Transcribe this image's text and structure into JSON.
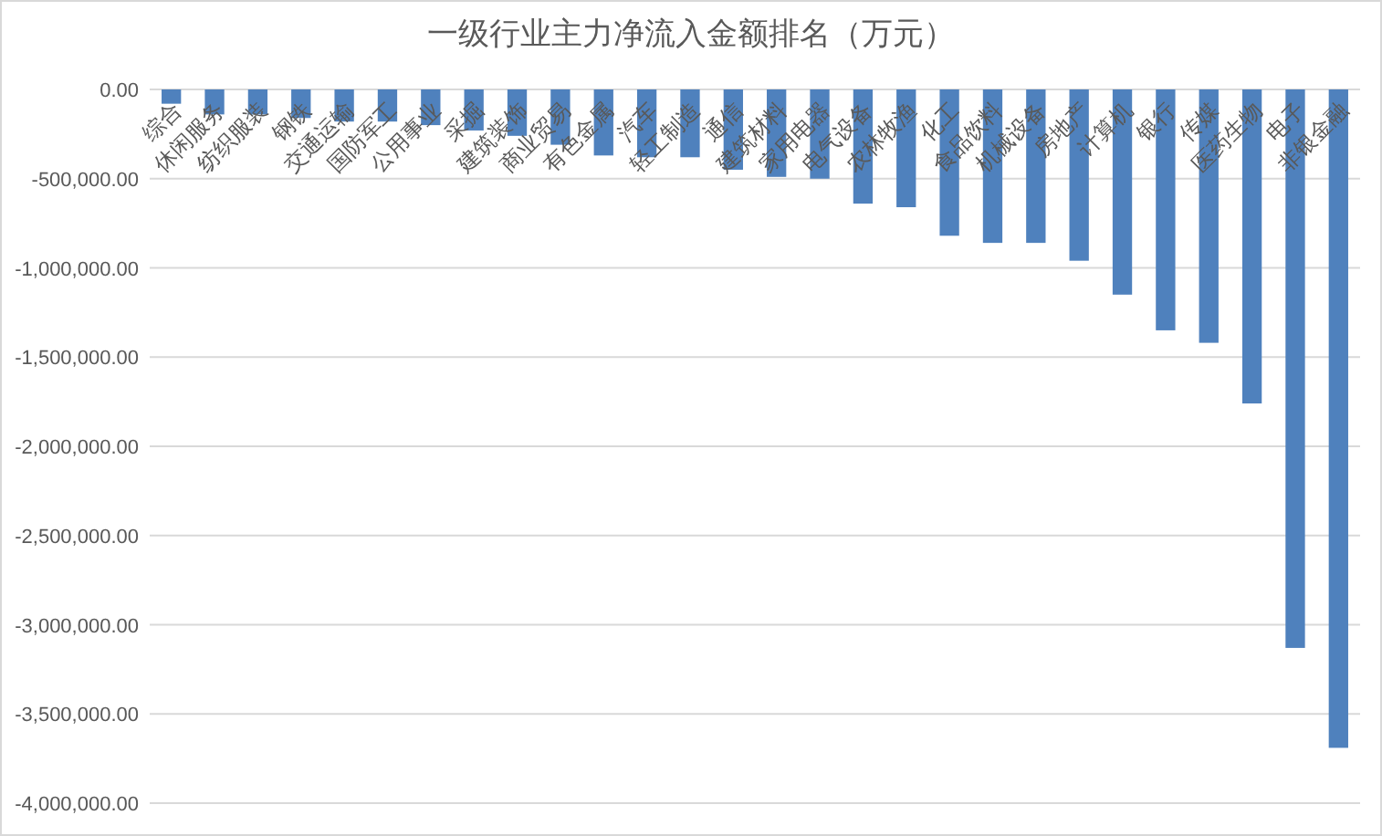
{
  "chart_data": {
    "type": "bar",
    "title": "一级行业主力净流入金额排名（万元）",
    "categories": [
      "综合",
      "休闲服务",
      "纺织服装",
      "钢铁",
      "交通运输",
      "国防军工",
      "公用事业",
      "采掘",
      "建筑装饰",
      "商业贸易",
      "有色金属",
      "汽车",
      "轻工制造",
      "通信",
      "建筑材料",
      "家用电器",
      "电气设备",
      "农林牧渔",
      "化工",
      "食品饮料",
      "机械设备",
      "房地产",
      "计算机",
      "银行",
      "传媒",
      "医药生物",
      "电子",
      "非银金融"
    ],
    "values": [
      -80000,
      -140000,
      -140000,
      -160000,
      -180000,
      -180000,
      -200000,
      -230000,
      -260000,
      -310000,
      -370000,
      -380000,
      -380000,
      -450000,
      -490000,
      -500000,
      -640000,
      -660000,
      -820000,
      -860000,
      -860000,
      -960000,
      -1150000,
      -1350000,
      -1420000,
      -1760000,
      -3130000,
      -3690000
    ],
    "color": "#4f81bd",
    "ylim": [
      -4000000,
      0
    ],
    "yticks": [
      {
        "value": 0,
        "label": "0.00"
      },
      {
        "value": -500000,
        "label": "-500,000.00"
      },
      {
        "value": -1000000,
        "label": "-1,000,000.00"
      },
      {
        "value": -1500000,
        "label": "-1,500,000.00"
      },
      {
        "value": -2000000,
        "label": "-2,000,000.00"
      },
      {
        "value": -2500000,
        "label": "-2,500,000.00"
      },
      {
        "value": -3000000,
        "label": "-3,000,000.00"
      },
      {
        "value": -3500000,
        "label": "-3,500,000.00"
      },
      {
        "value": -4000000,
        "label": "-4,000,000.00"
      }
    ],
    "grid": "y"
  }
}
